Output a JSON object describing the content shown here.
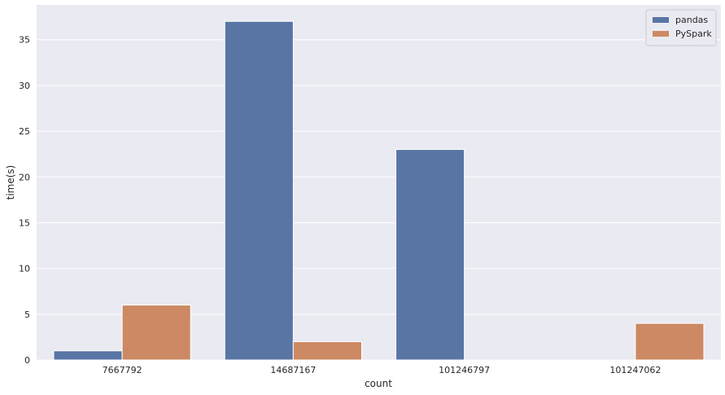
{
  "chart_data": {
    "type": "bar",
    "xlabel": "count",
    "ylabel": "time(s)",
    "categories": [
      "7667792",
      "14687167",
      "101246797",
      "101247062"
    ],
    "series": [
      {
        "name": "pandas",
        "color": "#5875a4",
        "values": [
          1,
          37,
          23,
          0
        ]
      },
      {
        "name": "PySpark",
        "color": "#cc8963",
        "values": [
          6,
          2,
          0,
          4
        ]
      }
    ],
    "ylim": [
      0,
      38.8
    ],
    "yticks": [
      0,
      5,
      10,
      15,
      20,
      25,
      30,
      35
    ],
    "grid": true,
    "background": "#eaeaf2",
    "legend_position": "top-right"
  }
}
